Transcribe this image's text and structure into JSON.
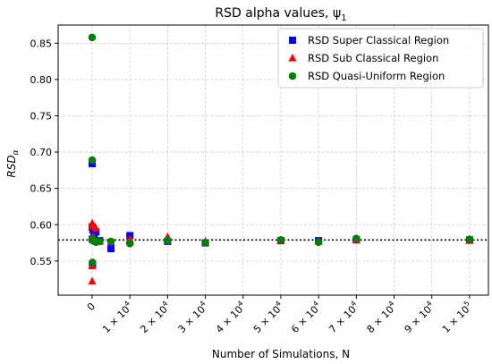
{
  "chart_data": {
    "type": "scatter",
    "title": "RSD alpha values, ψ",
    "title_subscript": "1",
    "xlabel": "Number of Simulations, N",
    "ylabel": "RSD",
    "ylabel_subscript": "α",
    "xlim": [
      -9000,
      105000
    ],
    "ylim": [
      0.503,
      0.875
    ],
    "grid": true,
    "legend_position": "top-right",
    "x_ticks": [
      {
        "value": 0,
        "mantissa": "0",
        "exponent": ""
      },
      {
        "value": 10000,
        "mantissa": "1 × 10",
        "exponent": "4"
      },
      {
        "value": 20000,
        "mantissa": "2 × 10",
        "exponent": "4"
      },
      {
        "value": 30000,
        "mantissa": "3 × 10",
        "exponent": "4"
      },
      {
        "value": 40000,
        "mantissa": "4 × 10",
        "exponent": "4"
      },
      {
        "value": 50000,
        "mantissa": "5 × 10",
        "exponent": "4"
      },
      {
        "value": 60000,
        "mantissa": "6 × 10",
        "exponent": "4"
      },
      {
        "value": 70000,
        "mantissa": "7 × 10",
        "exponent": "4"
      },
      {
        "value": 80000,
        "mantissa": "8 × 10",
        "exponent": "4"
      },
      {
        "value": 90000,
        "mantissa": "9 × 10",
        "exponent": "4"
      },
      {
        "value": 100000,
        "mantissa": "1 × 10",
        "exponent": "5"
      }
    ],
    "y_ticks": [
      "0.55",
      "0.60",
      "0.65",
      "0.70",
      "0.75",
      "0.80",
      "0.85"
    ],
    "reference_line": {
      "y": 0.579,
      "style": "dotted",
      "color": "#000000"
    },
    "series": [
      {
        "name": "RSD Super Classical Region",
        "marker": "square",
        "color": "#0000ff",
        "x": [
          10,
          20,
          50,
          100,
          200,
          500,
          1000,
          2000,
          5000,
          10000,
          20000,
          30000,
          50000,
          60000,
          70000,
          100000
        ],
        "y": [
          0.684,
          0.597,
          0.58,
          0.545,
          0.593,
          0.585,
          0.59,
          0.578,
          0.567,
          0.585,
          0.577,
          0.575,
          0.578,
          0.578,
          0.579,
          0.579
        ]
      },
      {
        "name": "RSD Sub Classical Region",
        "marker": "triangle",
        "color": "#ff0000",
        "x": [
          10,
          20,
          50,
          100,
          200,
          500,
          1000,
          2000,
          5000,
          10000,
          20000,
          30000,
          50000,
          60000,
          70000,
          100000
        ],
        "y": [
          0.522,
          0.543,
          0.602,
          0.598,
          0.583,
          0.582,
          0.595,
          0.577,
          0.576,
          0.58,
          0.583,
          0.577,
          0.578,
          0.577,
          0.579,
          0.578
        ]
      },
      {
        "name": "RSD Quasi-Uniform Region",
        "marker": "circle",
        "color": "#008000",
        "x": [
          10,
          20,
          50,
          100,
          200,
          500,
          1000,
          2000,
          5000,
          10000,
          20000,
          30000,
          50000,
          60000,
          70000,
          100000
        ],
        "y": [
          0.858,
          0.689,
          0.58,
          0.548,
          0.578,
          0.579,
          0.576,
          0.577,
          0.577,
          0.574,
          0.578,
          0.575,
          0.579,
          0.576,
          0.581,
          0.58
        ]
      }
    ]
  }
}
